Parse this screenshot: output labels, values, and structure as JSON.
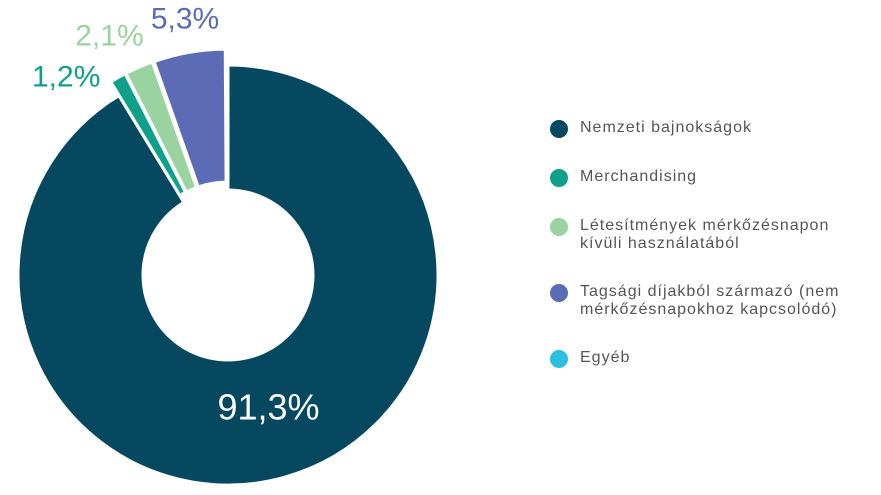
{
  "chart_data": {
    "type": "donut",
    "categories": [
      "Nemzeti bajnokságok",
      "Merchandising",
      "Létesítmények mérkőzésnapon kívüli használatából",
      "Tagsági díjakból származó (nem mérkőzésnapokhoz kapcsolódó)",
      "Egyéb"
    ],
    "values": [
      91.3,
      1.2,
      2.1,
      5.3,
      0.1
    ],
    "value_labels": [
      "91,3%",
      "1,2%",
      "2,1%",
      "5,3%",
      null
    ],
    "colors": [
      "#05485f",
      "#0fa08a",
      "#9bd3a0",
      "#5c6bb5",
      "#2bbfe0"
    ]
  }
}
